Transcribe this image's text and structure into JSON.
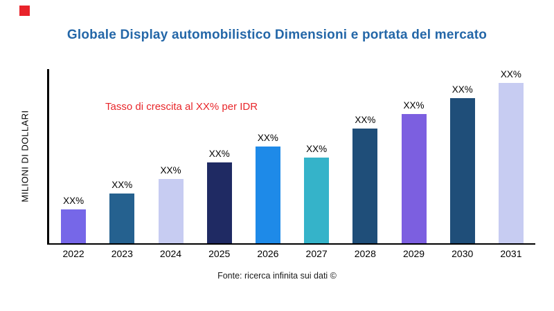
{
  "brand": {
    "color": "#E8232A"
  },
  "chart_data": {
    "type": "bar",
    "title": "Globale Display automobilistico Dimensioni e portata del mercato",
    "ylabel": "MILIONI DI DOLLARI",
    "annotation": "Tasso di crescita al XX% per IDR",
    "annotation_color": "#E8262A",
    "source": "Fonte: ricerca infinita sui dati ©",
    "categories": [
      "2022",
      "2023",
      "2024",
      "2025",
      "2026",
      "2027",
      "2028",
      "2029",
      "2030",
      "2031"
    ],
    "values": [
      21,
      31,
      40,
      50,
      60,
      53,
      71,
      80,
      90,
      100
    ],
    "bar_labels": [
      "XX%",
      "XX%",
      "XX%",
      "XX%",
      "XX%",
      "XX%",
      "XX%",
      "XX%",
      "XX%",
      "XX%"
    ],
    "colors": [
      "#7667E8",
      "#25618F",
      "#C7CCF2",
      "#1F2A63",
      "#1E8AE8",
      "#35B3C9",
      "#1F4E79",
      "#7C5FE0",
      "#1F4E79",
      "#C7CCF2"
    ],
    "ylim": [
      0,
      108
    ],
    "grid": false,
    "legend": "none",
    "title_color": "#2467A8"
  }
}
